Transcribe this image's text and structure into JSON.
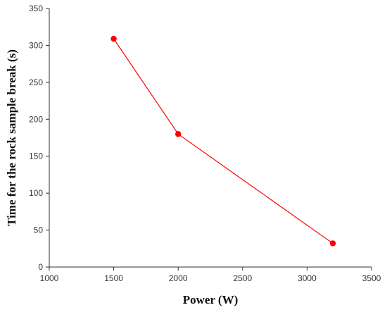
{
  "chart_data": {
    "type": "line",
    "xlabel": "Power (W)",
    "ylabel": "Time for the rock sample break (s)",
    "xlim": [
      1000,
      3500
    ],
    "ylim": [
      0,
      350
    ],
    "xticks": [
      1000,
      1500,
      2000,
      2500,
      3000,
      3500
    ],
    "yticks": [
      0,
      50,
      100,
      150,
      200,
      250,
      300,
      350
    ],
    "grid": false,
    "series": [
      {
        "color": "#ff0000",
        "marker": "circle",
        "x": [
          1500,
          2000,
          3200
        ],
        "y": [
          309,
          180,
          32
        ]
      }
    ]
  }
}
